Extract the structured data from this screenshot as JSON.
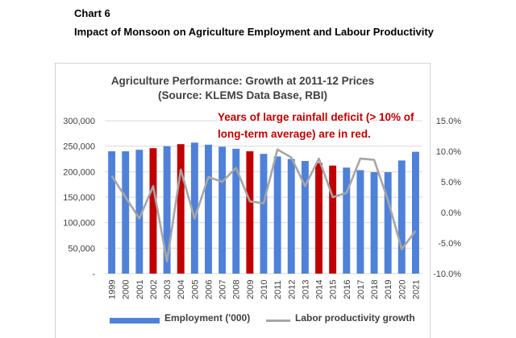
{
  "caption": {
    "number": "Chart 6",
    "title": "Impact of Monsoon on Agriculture Employment and Labour Productivity"
  },
  "colors": {
    "bar_normal": "#4f81d8",
    "bar_deficit": "#c00000",
    "line": "#a6a6a6",
    "annotation": "#c00000"
  },
  "chart_data": {
    "type": "bar",
    "title": "Agriculture Performance: Growth at 2011-12 Prices",
    "subtitle": "(Source: KLEMS Data Base, RBI)",
    "annotation": [
      "Years of large rainfall deficit (> 10% of",
      "long-term average) are in red."
    ],
    "categories": [
      "1999",
      "2000",
      "2001",
      "2002",
      "2003",
      "2004",
      "2005",
      "2006",
      "2007",
      "2008",
      "2009",
      "2010",
      "2011",
      "2012",
      "2013",
      "2014",
      "2015",
      "2016",
      "2017",
      "2018",
      "2019",
      "2020",
      "2021"
    ],
    "deficit_years": [
      "2002",
      "2004",
      "2009",
      "2014",
      "2015"
    ],
    "series": [
      {
        "name": "Employment ('000)",
        "type": "bar",
        "axis": "left",
        "values": [
          240000,
          240000,
          243000,
          246000,
          250000,
          254000,
          257000,
          253000,
          249000,
          245000,
          240000,
          235000,
          230000,
          225000,
          221000,
          217000,
          212000,
          208000,
          203000,
          199000,
          199000,
          222000,
          239000
        ]
      },
      {
        "name": "Labor productivity growth",
        "type": "line",
        "axis": "right",
        "values": [
          6.0,
          2.5,
          -1.0,
          4.3,
          -8.0,
          7.0,
          -1.0,
          5.8,
          5.0,
          7.3,
          1.8,
          1.5,
          10.3,
          9.0,
          4.3,
          8.8,
          2.5,
          3.2,
          8.8,
          8.6,
          2.0,
          -6.0,
          -3.0
        ]
      }
    ],
    "y_left": {
      "ylim": [
        0,
        300000
      ],
      "ticks": [
        "-",
        "50,000",
        "100,000",
        "150,000",
        "200,000",
        "250,000",
        "300,000"
      ],
      "tick_values": [
        0,
        50000,
        100000,
        150000,
        200000,
        250000,
        300000
      ]
    },
    "y_right": {
      "ylim": [
        -10,
        15
      ],
      "ticks": [
        "-10.0%",
        "-5.0%",
        "0.0%",
        "5.0%",
        "10.0%",
        "15.0%"
      ],
      "tick_values": [
        -10,
        -5,
        0,
        5,
        10,
        15
      ]
    },
    "grid": true,
    "legend_position": "bottom"
  }
}
